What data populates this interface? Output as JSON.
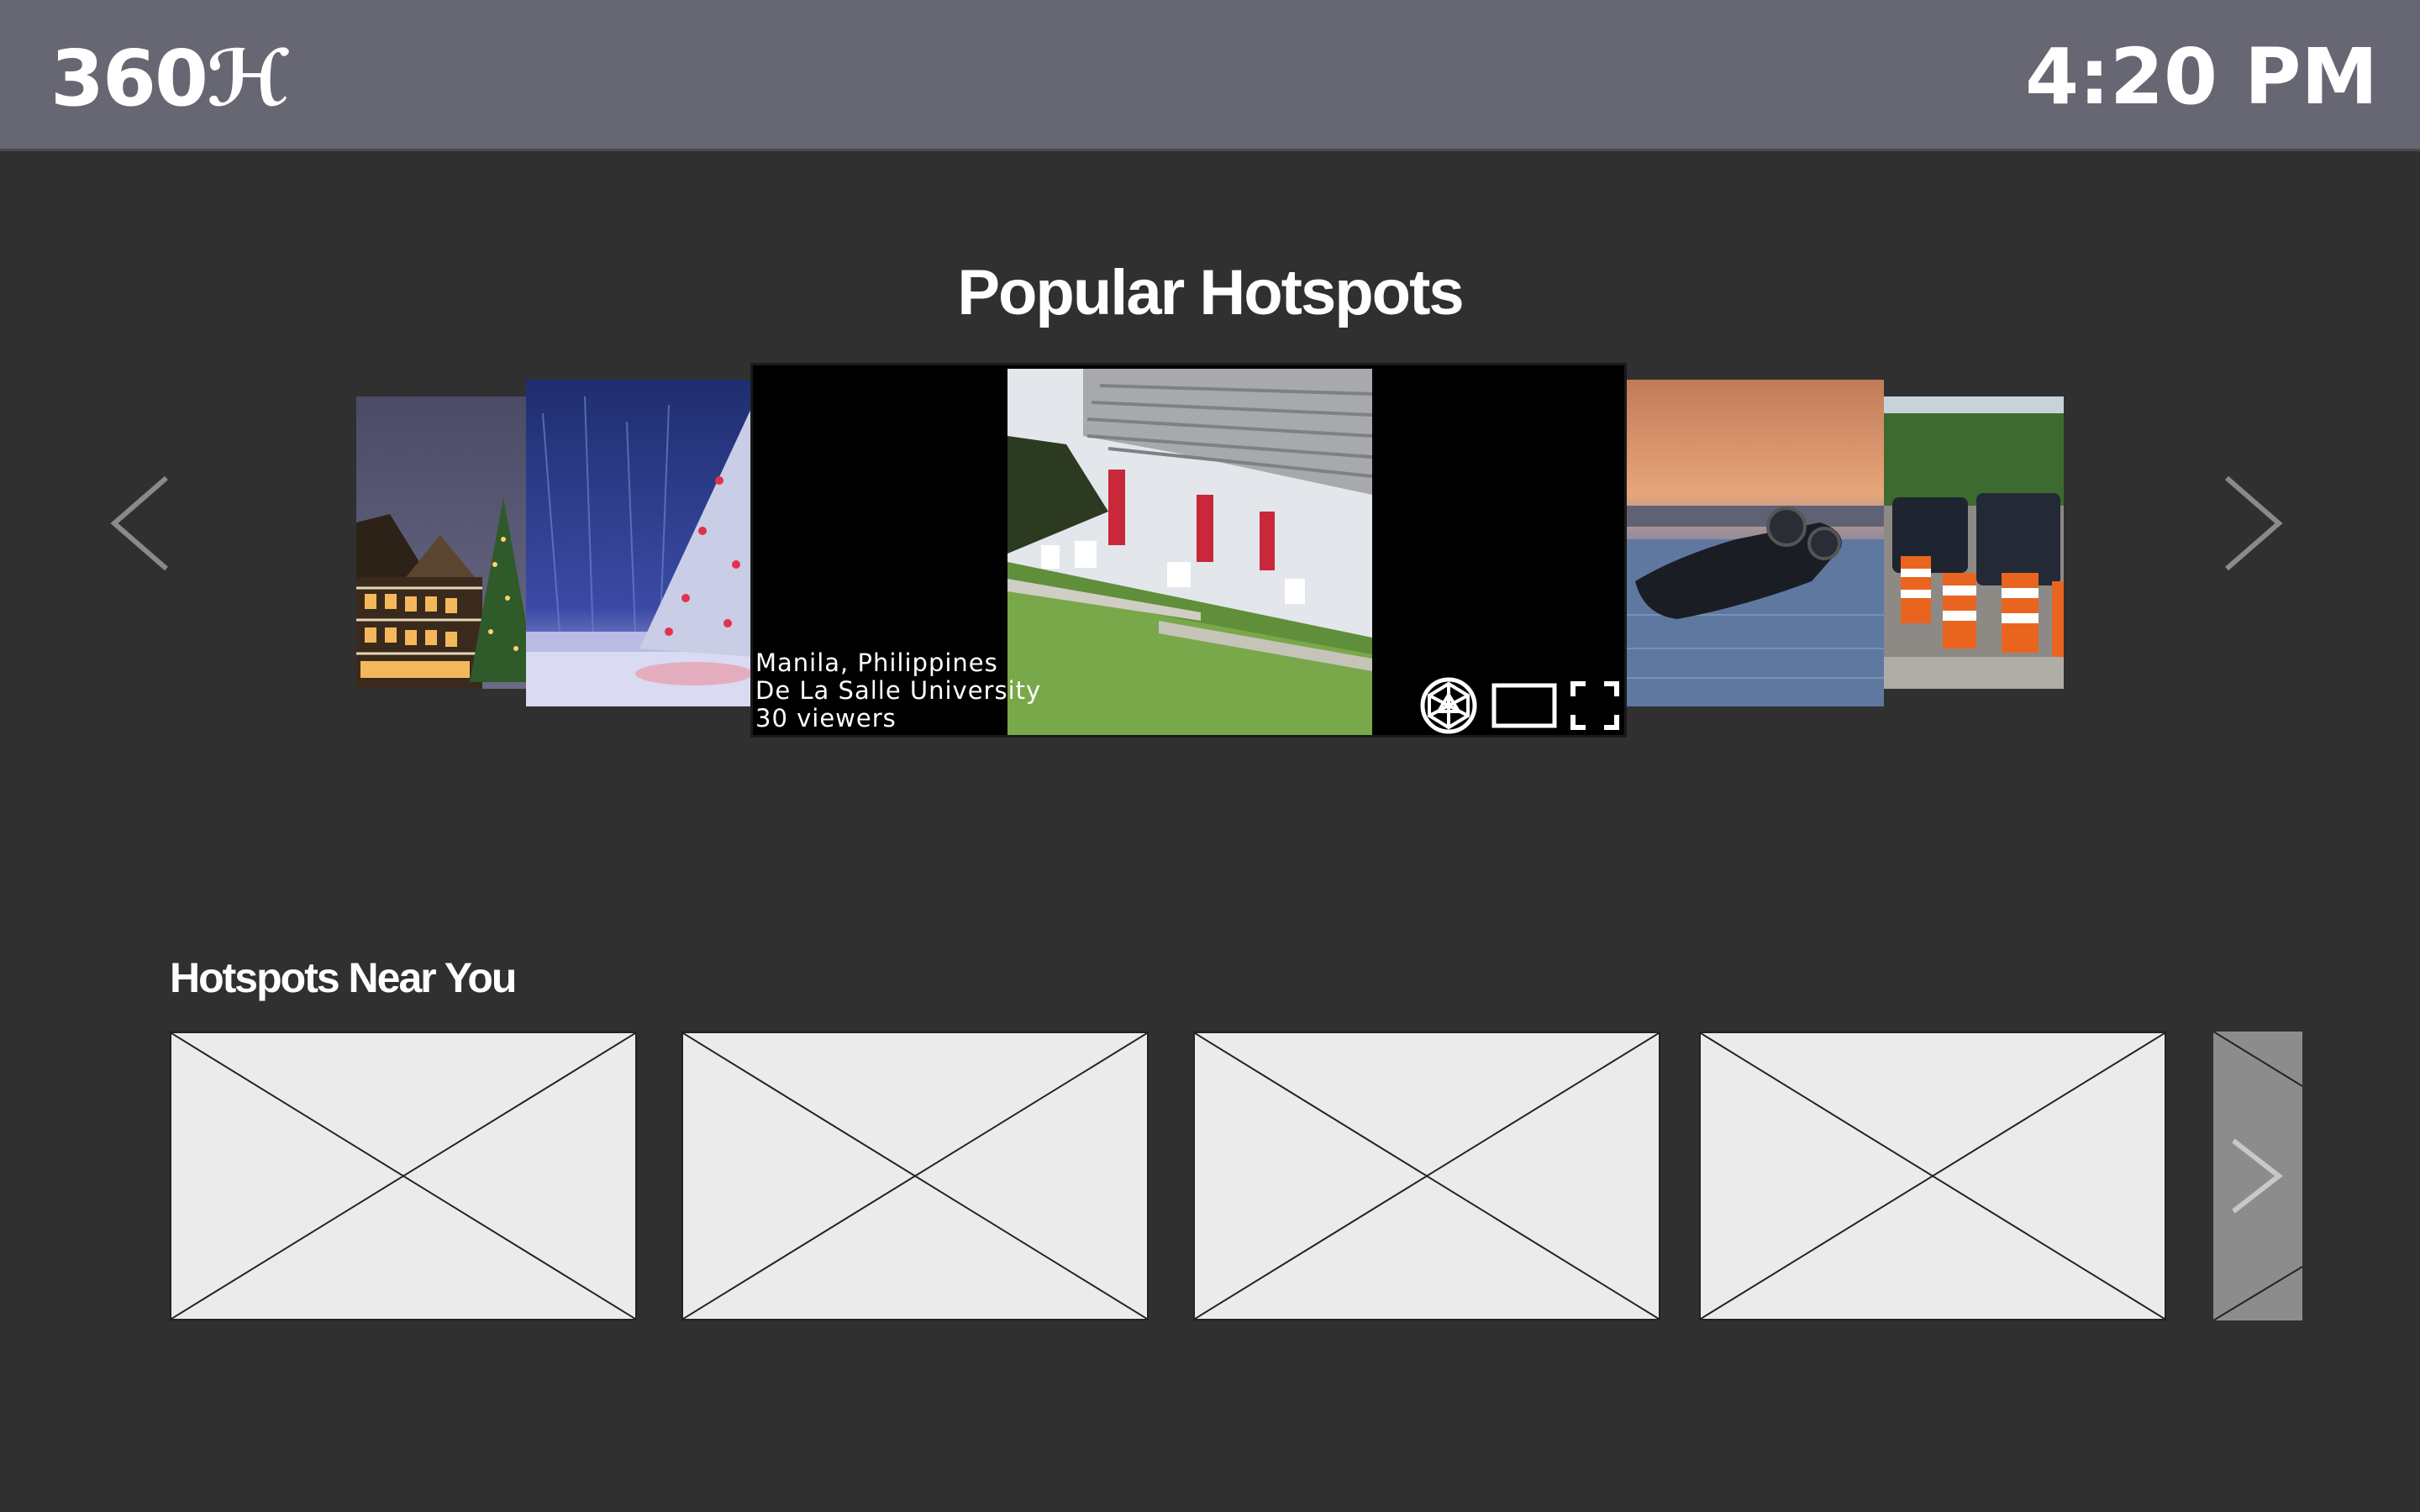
{
  "app": {
    "logo_text": "360ℋ",
    "time": "4:20 PM"
  },
  "popular": {
    "title": "Popular Hotspots",
    "featured": {
      "location": "Manila, Philippines",
      "place": "De La Salle University",
      "viewers": "30 viewers"
    },
    "controls": [
      "vr-sphere-icon",
      "screen-mode-icon",
      "fullscreen-icon"
    ],
    "thumbnails": [
      "tudor-houses-christmas",
      "snowy-christmas-tree",
      "overturned-car-flood",
      "traffic-cones-road"
    ]
  },
  "nearby": {
    "title": "Hotspots Near You",
    "tile_count": 4
  },
  "colors": {
    "topbar": "#676673",
    "background": "#303030",
    "placeholder": "#ebebeb"
  }
}
